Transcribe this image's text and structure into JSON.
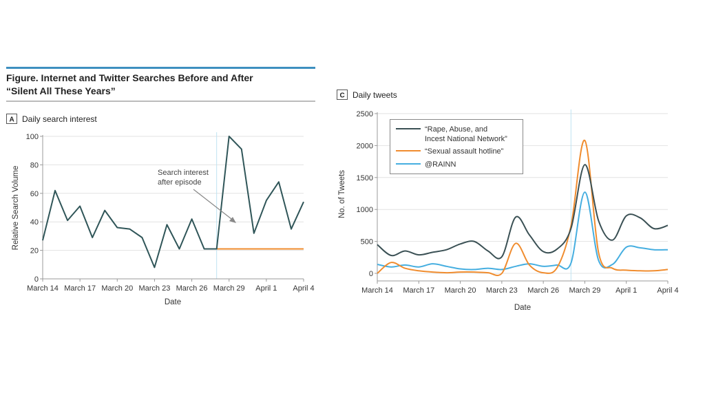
{
  "figure": {
    "title_line1": "Figure. Internet and Twitter Searches Before and After",
    "title_line2": "“Silent All These Years”",
    "accent_color": "#3d8fc0"
  },
  "chart_data": [
    {
      "panel": "A",
      "type": "line",
      "title": "Daily search interest",
      "xlabel": "Date",
      "ylabel": "Relative Search Volume",
      "ylim": [
        0,
        100
      ],
      "yticks": [
        0,
        20,
        40,
        60,
        80,
        100
      ],
      "xtick_labels": [
        "March 14",
        "March 17",
        "March 20",
        "March 23",
        "March 26",
        "March 29",
        "April 1",
        "April 4"
      ],
      "x": [
        "Mar 14",
        "Mar 15",
        "Mar 16",
        "Mar 17",
        "Mar 18",
        "Mar 19",
        "Mar 20",
        "Mar 21",
        "Mar 22",
        "Mar 23",
        "Mar 24",
        "Mar 25",
        "Mar 26",
        "Mar 27",
        "Mar 28",
        "Mar 29",
        "Mar 30",
        "Mar 31",
        "Apr 1",
        "Apr 2",
        "Apr 3",
        "Apr 4"
      ],
      "grid": true,
      "episode_marker_day": 14,
      "series": [
        {
          "name": "Search interest",
          "color": "#2f5558",
          "values": [
            27,
            62,
            41,
            51,
            29,
            48,
            36,
            35,
            29,
            8,
            38,
            21,
            42,
            21,
            21,
            100,
            91,
            32,
            55,
            68,
            35,
            54
          ]
        },
        {
          "name": "Baseline",
          "color": "#f08c2e",
          "start_day": 14,
          "end_day": 21,
          "value": 21
        }
      ],
      "annotation": {
        "line1": "Search interest",
        "line2": "after episode"
      }
    },
    {
      "panel": "C",
      "type": "line",
      "title": "Daily tweets",
      "xlabel": "Date",
      "ylabel": "No. of Tweets",
      "ylim": [
        0,
        2500
      ],
      "yticks": [
        0,
        500,
        1000,
        1500,
        2000,
        2500
      ],
      "xtick_labels": [
        "March 14",
        "March 17",
        "March 20",
        "March 23",
        "March 26",
        "March 29",
        "April 1",
        "April 4"
      ],
      "grid": true,
      "legend_position": "top-left",
      "episode_marker_day": 14,
      "series": [
        {
          "name": "“Rape, Abuse, and Incest National Network”",
          "legend_line1": "“Rape, Abuse, and",
          "legend_line2": "Incest National Network”",
          "color": "#3a5054",
          "values": [
            450,
            280,
            350,
            290,
            330,
            370,
            460,
            500,
            350,
            260,
            880,
            600,
            340,
            380,
            700,
            1700,
            820,
            520,
            900,
            870,
            700,
            750
          ]
        },
        {
          "name": "“Sexual assault hotline”",
          "legend_line1": "“Sexual assault hotline”",
          "color": "#f08c2e",
          "values": [
            0,
            170,
            80,
            40,
            20,
            10,
            20,
            20,
            10,
            0,
            470,
            130,
            10,
            90,
            740,
            2080,
            320,
            80,
            50,
            40,
            40,
            60
          ]
        },
        {
          "name": "@RAINN",
          "legend_line1": "@RAINN",
          "color": "#45aee0",
          "values": [
            140,
            100,
            130,
            100,
            150,
            110,
            70,
            60,
            80,
            60,
            110,
            150,
            110,
            130,
            160,
            1270,
            200,
            140,
            410,
            400,
            370,
            370
          ]
        }
      ]
    }
  ]
}
